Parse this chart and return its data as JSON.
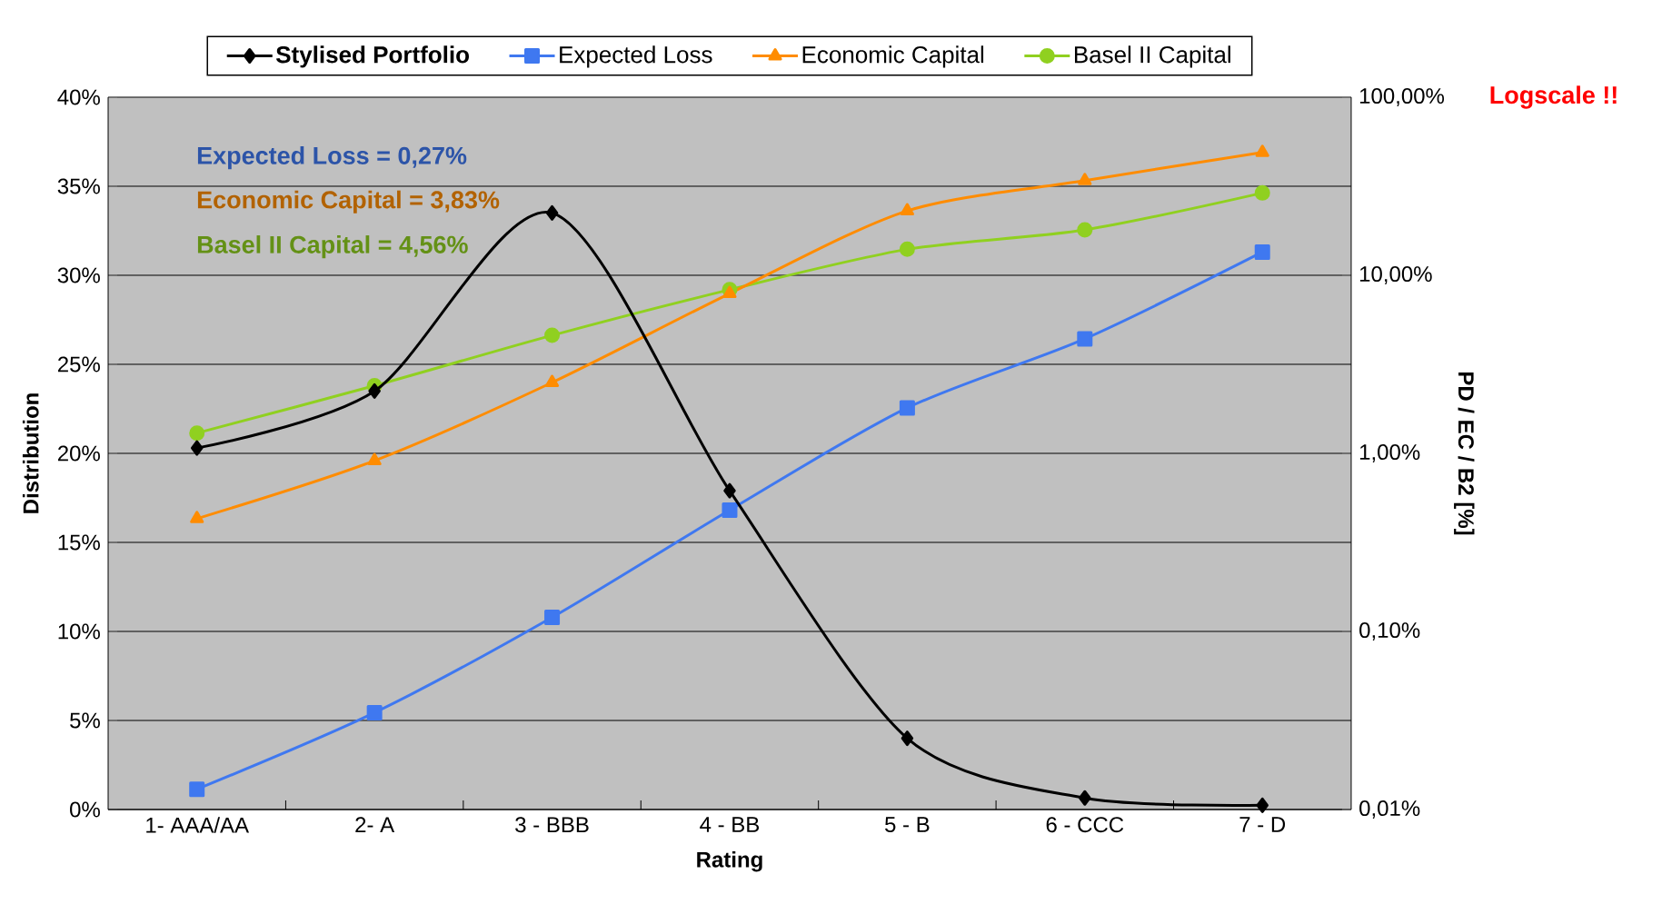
{
  "chart_data": {
    "type": "line",
    "xlabel": "Rating",
    "ylabel": "Distribution",
    "y2label": "PD / EC / B2 [%]",
    "categories": [
      "1- AAA/AA",
      "2- A",
      "3 - BBB",
      "4 - BB",
      "5 - B",
      "6 - CCC",
      "7 - D"
    ],
    "series": [
      {
        "name": "Stylised Portfolio",
        "color": "#000000",
        "marker": "diamond",
        "values": [
          20.3,
          23.5,
          33.5,
          17.9,
          4.0,
          0.65,
          0.24
        ]
      },
      {
        "name": "Expected Loss",
        "color": "#3f78f0",
        "marker": "square",
        "axis": "y2",
        "values": [
          0.013,
          0.035,
          0.12,
          0.48,
          1.8,
          4.4,
          13.5
        ]
      },
      {
        "name": "Economic Capital",
        "color": "#ff8c00",
        "marker": "triangle",
        "axis": "y2",
        "values": [
          0.43,
          0.91,
          2.5,
          7.9,
          23,
          34,
          49
        ]
      },
      {
        "name": "Basel II Capital",
        "color": "#90d020",
        "marker": "circle",
        "axis": "y2",
        "values": [
          1.3,
          2.4,
          4.6,
          8.3,
          14,
          18,
          29
        ]
      }
    ],
    "ylim": [
      0,
      40
    ],
    "yticks": [
      {
        "value": 0,
        "label": "0%"
      },
      {
        "value": 5,
        "label": "5%"
      },
      {
        "value": 10,
        "label": "10%"
      },
      {
        "value": 15,
        "label": "15%"
      },
      {
        "value": 20,
        "label": "20%"
      },
      {
        "value": 25,
        "label": "25%"
      },
      {
        "value": 30,
        "label": "30%"
      },
      {
        "value": 35,
        "label": "35%"
      },
      {
        "value": 40,
        "label": "40%"
      }
    ],
    "y2lim": [
      0.01,
      100
    ],
    "y2ticks": [
      {
        "value": 0.01,
        "label": "0,01%"
      },
      {
        "value": 0.1,
        "label": "0,10%"
      },
      {
        "value": 1,
        "label": "1,00%"
      },
      {
        "value": 10,
        "label": "10,00%"
      },
      {
        "value": 100,
        "label": "100,00%"
      }
    ],
    "log": "y2",
    "grid": "y",
    "legend": "top",
    "annotations": [
      "Expected Loss = 0,27%",
      "Economic Capital = 3,83%",
      "Basel II Capital = 4,56%",
      "Logscale !!"
    ]
  }
}
